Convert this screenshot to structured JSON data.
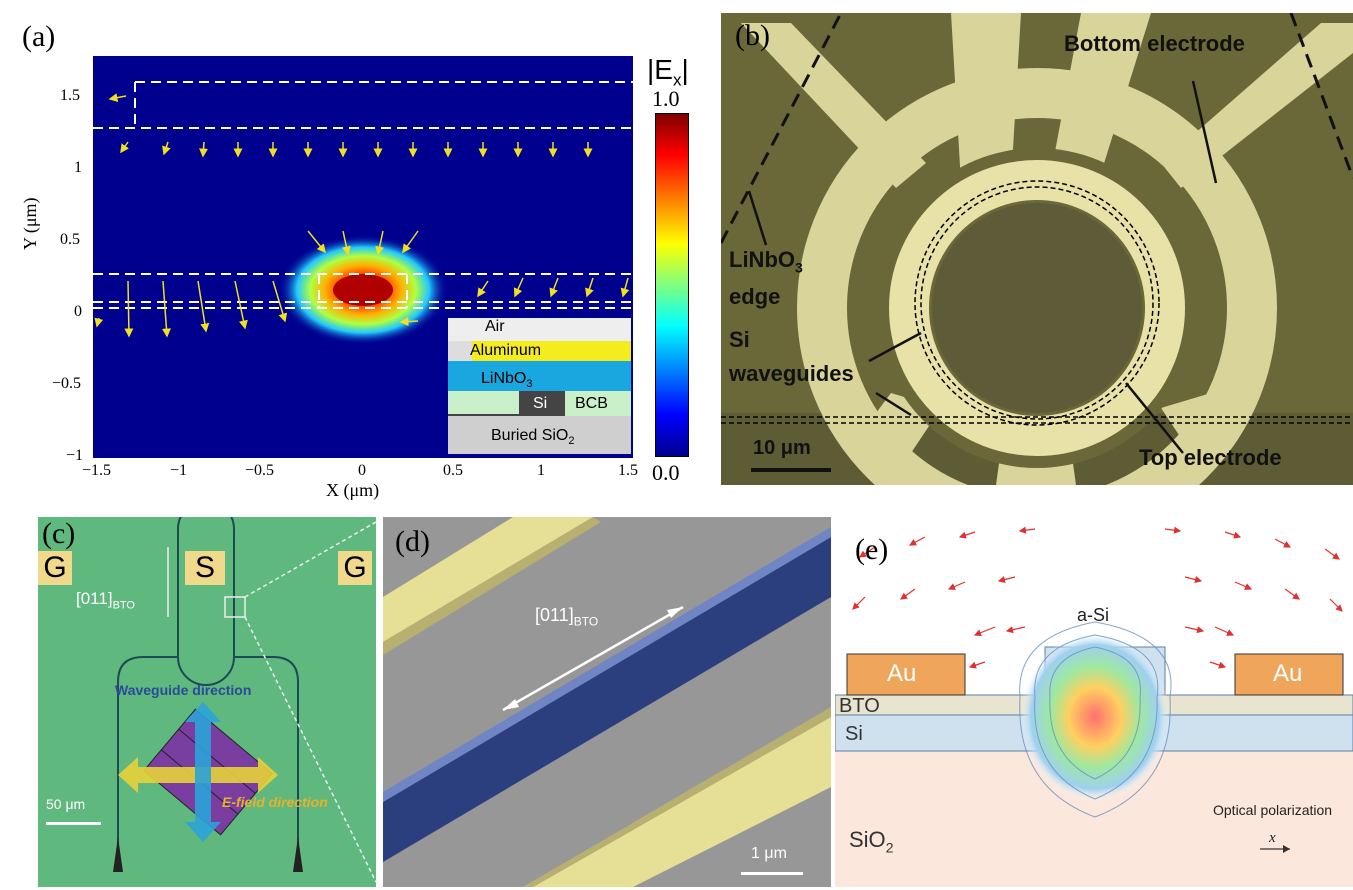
{
  "panel_a": {
    "label": "(a)",
    "xlabel": "X (μm)",
    "ylabel": "Y (μm)",
    "xticks": [
      "−1.5",
      "−1",
      "−0.5",
      "0",
      "0.5",
      "1",
      "1.5"
    ],
    "yticks": [
      "1.5",
      "1",
      "0.5",
      "0",
      "−0.5",
      "−1"
    ],
    "colorbar_title": "|E",
    "colorbar_sub": "x",
    "colorbar_title_end": "|",
    "colorbar_max": "1.0",
    "colorbar_min": "0.0",
    "legend": {
      "air": "Air",
      "aluminum": "Aluminum",
      "linbo3": "LiNbO",
      "linbo3_sub": "3",
      "si": "Si",
      "bcb": "BCB",
      "buried": "Buried SiO",
      "buried_sub": "2"
    },
    "colors": {
      "field_bg": "#00008f",
      "arrow": "#f0e020",
      "aluminum": "#f4ec1e",
      "linbo3": "#1aa7e0",
      "bcb": "#c9f0c8",
      "si": "#444444",
      "sio2": "#cccccc"
    }
  },
  "panel_b": {
    "label": "(b)",
    "bottom_electrode": "Bottom electrode",
    "linbo3_edge_1": "LiNbO",
    "linbo3_edge_sub": "3",
    "linbo3_edge_2": "edge",
    "si_1": "Si",
    "si_2": "waveguides",
    "top_electrode": "Top electrode",
    "scale": "10 μm"
  },
  "panel_c": {
    "label": "(c)",
    "g_left": "G",
    "s": "S",
    "g_right": "G",
    "direction": "[011]",
    "direction_sub": "BTO",
    "waveguide_direction": "Waveguide direction",
    "efield_direction": "E-field direction",
    "scale": "50 μm"
  },
  "panel_d": {
    "label": "(d)",
    "direction": "[011]",
    "direction_sub": "BTO",
    "scale": "1 μm"
  },
  "panel_e": {
    "label": "(e)",
    "asi": "a-Si",
    "au_left": "Au",
    "au_right": "Au",
    "bto": "BTO",
    "si": "Si",
    "sio2": "SiO",
    "sio2_sub": "2",
    "optical_polarization": "Optical polarization",
    "x": "x"
  }
}
